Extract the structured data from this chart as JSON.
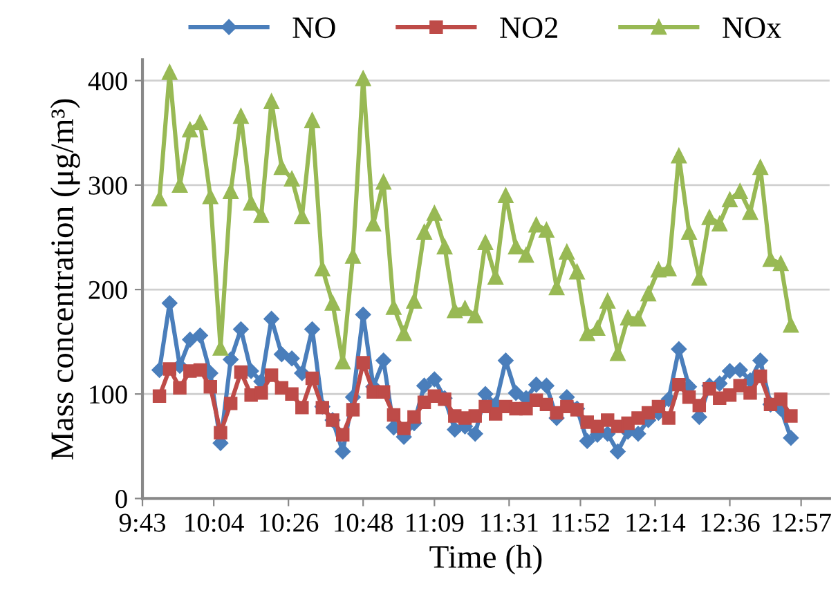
{
  "chart_data": {
    "type": "line",
    "xlabel": "Time (h)",
    "ylabel": "Mass concentration (μg/m³)",
    "x": [
      9.8,
      9.85,
      9.9,
      9.95,
      10.0,
      10.05,
      10.1,
      10.15,
      10.2,
      10.25,
      10.3,
      10.35,
      10.4,
      10.45,
      10.5,
      10.55,
      10.6,
      10.65,
      10.7,
      10.75,
      10.8,
      10.85,
      10.9,
      10.95,
      11.0,
      11.05,
      11.1,
      11.15,
      11.2,
      11.25,
      11.3,
      11.35,
      11.4,
      11.45,
      11.5,
      11.55,
      11.6,
      11.65,
      11.7,
      11.75,
      11.8,
      11.85,
      11.9,
      11.95,
      12.0,
      12.05,
      12.1,
      12.15,
      12.2,
      12.25,
      12.3,
      12.35,
      12.4,
      12.45,
      12.5,
      12.55,
      12.6,
      12.65,
      12.7,
      12.75,
      12.8,
      12.85,
      12.9
    ],
    "series": [
      {
        "name": "NO",
        "color": "#4a7ebb",
        "marker": "diamond",
        "values": [
          123,
          187,
          127,
          152,
          156,
          120,
          53,
          133,
          162,
          122,
          112,
          172,
          138,
          134,
          120,
          162,
          88,
          75,
          45,
          97,
          176,
          107,
          132,
          68,
          59,
          72,
          108,
          114,
          96,
          66,
          69,
          62,
          100,
          90,
          132,
          101,
          96,
          109,
          108,
          77,
          97,
          86,
          55,
          61,
          62,
          45,
          64,
          62,
          75,
          82,
          95,
          143,
          107,
          78,
          108,
          110,
          122,
          123,
          113,
          132,
          90,
          86,
          58
        ]
      },
      {
        "name": "NO2",
        "color": "#be4b48",
        "marker": "square",
        "values": [
          98,
          124,
          106,
          122,
          123,
          107,
          63,
          91,
          121,
          99,
          101,
          118,
          106,
          100,
          87,
          115,
          87,
          75,
          61,
          85,
          130,
          102,
          102,
          80,
          67,
          78,
          92,
          98,
          95,
          79,
          77,
          79,
          88,
          81,
          88,
          86,
          86,
          94,
          90,
          82,
          88,
          85,
          73,
          69,
          75,
          69,
          72,
          77,
          82,
          88,
          77,
          109,
          97,
          89,
          105,
          96,
          99,
          108,
          101,
          117,
          90,
          95,
          79
        ]
      },
      {
        "name": "NOx",
        "color": "#98b954",
        "marker": "triangle",
        "values": [
          287,
          408,
          300,
          353,
          360,
          289,
          144,
          294,
          366,
          283,
          271,
          380,
          317,
          306,
          270,
          362,
          220,
          187,
          131,
          232,
          402,
          263,
          303,
          183,
          158,
          189,
          255,
          273,
          241,
          180,
          182,
          175,
          245,
          212,
          290,
          241,
          233,
          262,
          257,
          202,
          236,
          217,
          158,
          163,
          189,
          139,
          173,
          172,
          196,
          219,
          220,
          328,
          255,
          211,
          269,
          263,
          286,
          294,
          274,
          317,
          229,
          225,
          166
        ]
      }
    ],
    "xlim": [
      9.7167,
      13.09
    ],
    "xticks": [
      {
        "value": 9.7167,
        "label": "9:43"
      },
      {
        "value": 10.0667,
        "label": "10:04"
      },
      {
        "value": 10.4333,
        "label": "10:26"
      },
      {
        "value": 10.8,
        "label": "10:48"
      },
      {
        "value": 11.15,
        "label": "11:09"
      },
      {
        "value": 11.5167,
        "label": "11:31"
      },
      {
        "value": 11.8667,
        "label": "11:52"
      },
      {
        "value": 12.2333,
        "label": "12:14"
      },
      {
        "value": 12.6,
        "label": "12:36"
      },
      {
        "value": 12.95,
        "label": "12:57"
      }
    ],
    "ylim": [
      0,
      420
    ],
    "yticks": [
      0,
      100,
      200,
      300,
      400
    ],
    "grid": "y",
    "legend": "top",
    "line_style": "solid"
  }
}
